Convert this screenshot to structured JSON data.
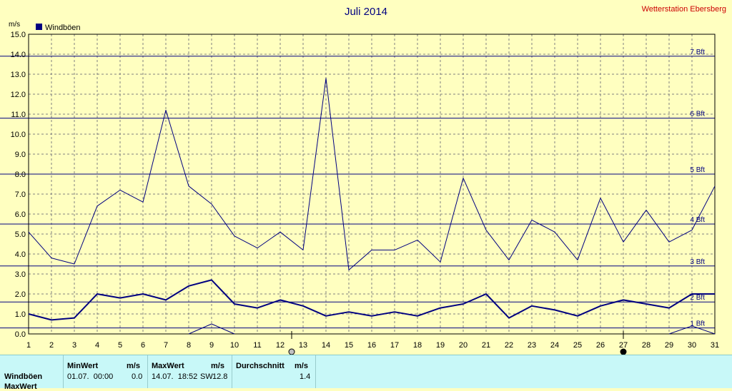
{
  "chart_data": {
    "type": "line",
    "title": "Juli 2014",
    "station": "Wetterstation Ebersberg",
    "ylabel": "m/s",
    "ylim": [
      0,
      15
    ],
    "yticks": [
      "0.0",
      "1.0",
      "2.0",
      "3.0",
      "4.0",
      "5.0",
      "6.0",
      "7.0",
      "8.0",
      "9.0",
      "10.0",
      "11.0",
      "12.0",
      "13.0",
      "14.0",
      "15.0"
    ],
    "x": [
      1,
      2,
      3,
      4,
      5,
      6,
      7,
      8,
      9,
      10,
      11,
      12,
      13,
      14,
      15,
      16,
      17,
      18,
      19,
      20,
      21,
      22,
      23,
      24,
      25,
      26,
      27,
      28,
      29,
      30,
      31
    ],
    "xticks": [
      "1",
      "2",
      "3",
      "4",
      "5",
      "6",
      "7",
      "8",
      "9",
      "10",
      "11",
      "12",
      "13",
      "14",
      "15",
      "16",
      "17",
      "18",
      "19",
      "20",
      "21",
      "22",
      "23",
      "24",
      "25",
      "26",
      "27",
      "28",
      "29",
      "30",
      "31"
    ],
    "grid": true,
    "legend_position": "top-left",
    "series": [
      {
        "name": "Windböen",
        "role": "max",
        "color": "#000080",
        "values": [
          5.1,
          3.8,
          3.5,
          6.4,
          7.2,
          6.6,
          11.2,
          7.4,
          6.5,
          4.9,
          4.3,
          5.1,
          4.2,
          12.8,
          3.2,
          4.2,
          4.2,
          4.7,
          3.6,
          7.8,
          5.2,
          3.7,
          5.7,
          5.1,
          3.7,
          6.8,
          4.6,
          6.2,
          4.6,
          5.2,
          7.4
        ]
      },
      {
        "name": "",
        "role": "avg",
        "color": "#000080",
        "values": [
          1.0,
          0.7,
          0.8,
          2.0,
          1.8,
          2.0,
          1.7,
          2.4,
          2.7,
          1.5,
          1.3,
          1.7,
          1.4,
          0.9,
          1.1,
          0.9,
          1.1,
          0.9,
          1.3,
          1.5,
          2.0,
          0.8,
          1.4,
          1.2,
          0.9,
          1.4,
          1.7,
          1.5,
          1.3,
          2.0,
          2.0
        ]
      },
      {
        "name": "",
        "role": "min",
        "color": "#000080",
        "values": [
          null,
          null,
          null,
          null,
          null,
          null,
          null,
          0,
          0.5,
          0,
          null,
          null,
          null,
          null,
          null,
          null,
          null,
          null,
          null,
          null,
          null,
          null,
          null,
          null,
          null,
          null,
          null,
          null,
          0,
          0.4,
          0
        ]
      }
    ],
    "beaufort_lines": [
      {
        "label": "1 Bft",
        "value": 0.3
      },
      {
        "label": "2 Bft",
        "value": 1.6
      },
      {
        "label": "3 Bft",
        "value": 3.4
      },
      {
        "label": "4 Bft",
        "value": 5.5
      },
      {
        "label": "5 Bft",
        "value": 8.0
      },
      {
        "label": "6 Bft",
        "value": 10.8
      },
      {
        "label": "7 Bft",
        "value": 13.9
      }
    ],
    "moon_markers": [
      {
        "x": 12.5,
        "phase": "full",
        "color": "#c0c0c0"
      },
      {
        "x": 27,
        "phase": "new",
        "color": "#000000"
      }
    ],
    "colors": {
      "background": "#ffffc0",
      "line": "#000080",
      "grid": "#808080",
      "station": "#cc0000"
    }
  },
  "stats": {
    "row_label": "Windböen",
    "row2_label": "MaxWert",
    "min_header": "MinWert",
    "min_unit": "m/s",
    "max_header": "MaxWert",
    "max_unit": "m/s",
    "avg_header": "Durchschnitt",
    "avg_unit": "m/s",
    "min_time": "01.07.  00:00",
    "min_value": "0.0",
    "max_time": "14.07.  18:52",
    "max_dir": "SW",
    "max_value": "12.8",
    "avg_value": "1.4"
  }
}
